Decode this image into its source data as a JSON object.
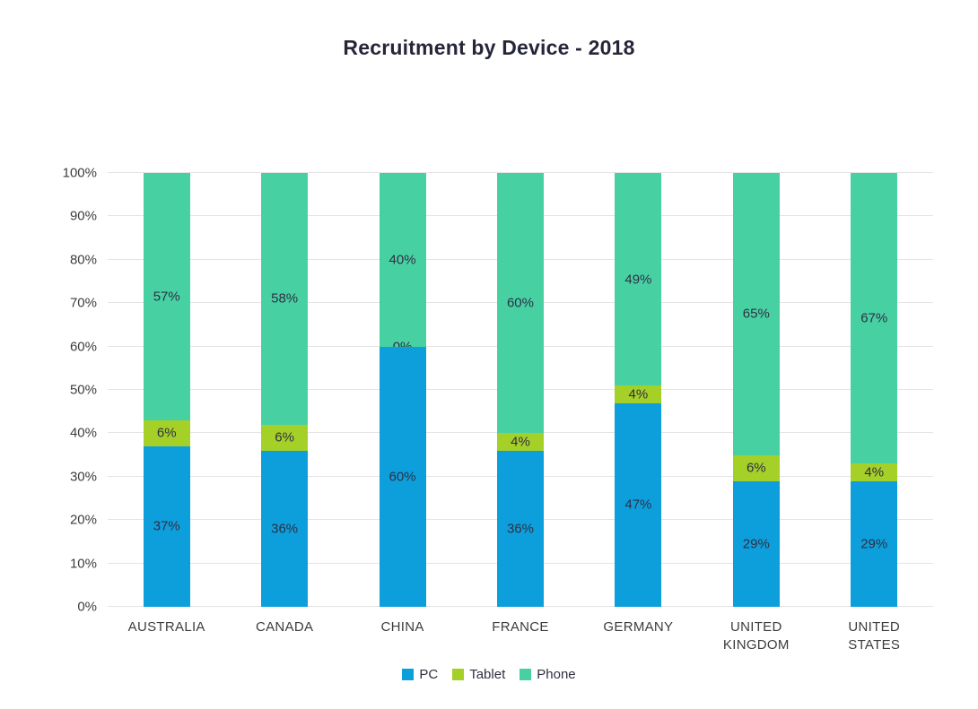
{
  "chart_data": {
    "type": "bar",
    "stacked": true,
    "title": "Recruitment by Device - 2018",
    "categories": [
      "AUSTRALIA",
      "CANADA",
      "CHINA",
      "FRANCE",
      "GERMANY",
      "UNITED KINGDOM",
      "UNITED STATES"
    ],
    "series": [
      {
        "name": "PC",
        "color": "#0d9fdb",
        "values": [
          37,
          36,
          60,
          36,
          47,
          29,
          29
        ]
      },
      {
        "name": "Tablet",
        "color": "#a5d028",
        "values": [
          6,
          6,
          0,
          4,
          4,
          6,
          4
        ]
      },
      {
        "name": "Phone",
        "color": "#47d1a3",
        "values": [
          57,
          58,
          40,
          60,
          49,
          65,
          67
        ]
      }
    ],
    "value_suffix": "%",
    "y_axis": {
      "min": 0,
      "max": 100,
      "step": 10,
      "tick_labels": [
        "0%",
        "10%",
        "20%",
        "30%",
        "40%",
        "50%",
        "60%",
        "70%",
        "80%",
        "90%",
        "100%"
      ]
    },
    "grid": true,
    "legend_position": "bottom",
    "legend_labels": [
      "PC",
      "Tablet",
      "Phone"
    ]
  }
}
